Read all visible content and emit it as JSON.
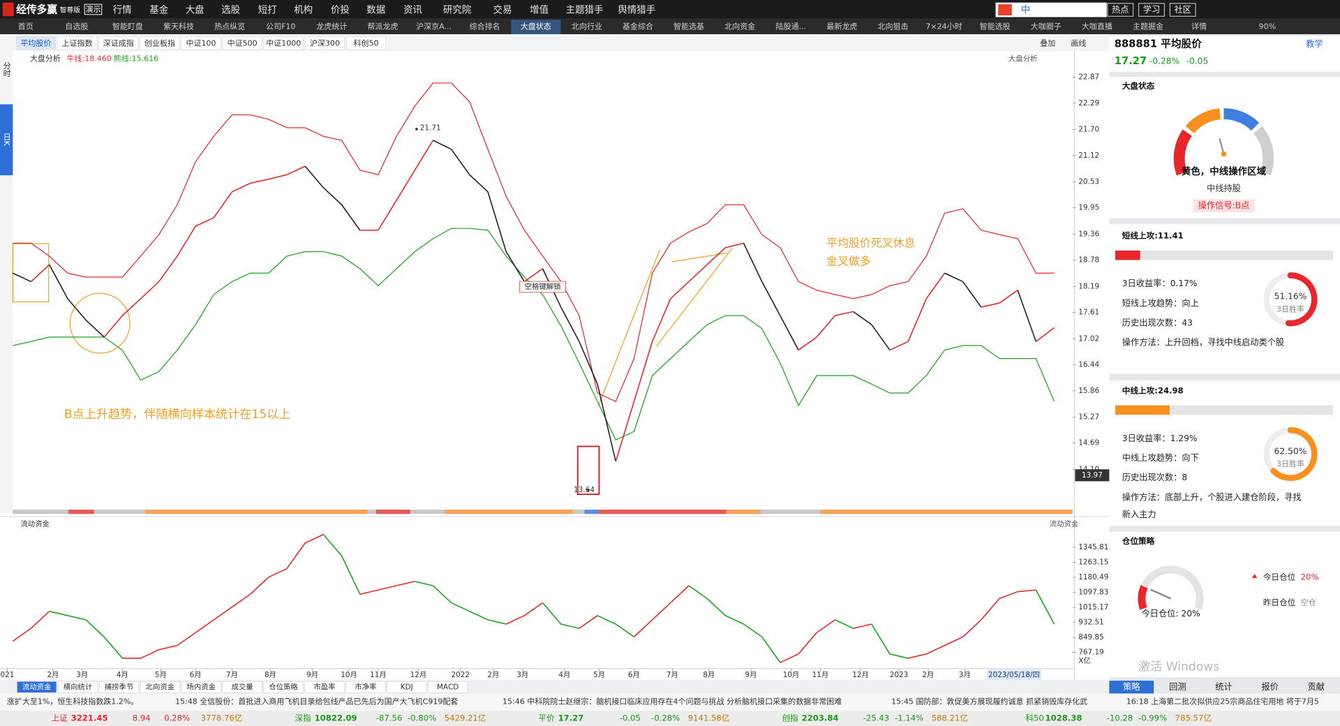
{
  "menu": {
    "brand": "经传多赢",
    "edition": "智尊版",
    "demo": "演示",
    "items": [
      "行情",
      "基金",
      "大盘",
      "选股",
      "短打",
      "机构",
      "价投",
      "数据",
      "资讯",
      "研究院",
      "交易",
      "增值",
      "主题猎手",
      "舆情猎手"
    ],
    "ime": "中",
    "right": [
      "热点",
      "学习",
      "社区"
    ],
    "zoom": "90%"
  },
  "tabs": [
    "首页",
    "自选股",
    "智能盯盘",
    "紫天科技",
    "热点纵览",
    "公司F10",
    "龙虎统计",
    "帮派龙虎",
    "沪深京A...",
    "综合排名",
    "大盘状态",
    "北向行业",
    "基金综合",
    "智能选基",
    "北向资金",
    "陆股通...",
    "最新龙虎",
    "北向狙击",
    "7×24小时",
    "智能选股",
    "大咖圈子",
    "大咖直播",
    "主题掘金",
    "详情"
  ],
  "active_tab": 10,
  "index_tabs": [
    "平均股价",
    "上证指数",
    "深证成指",
    "创业板指",
    "中证100",
    "中证500",
    "中证1000",
    "沪深300",
    "科创50"
  ],
  "active_index_tab": 0,
  "toolbar": [
    "叠加",
    "画线"
  ],
  "side_tabs": [
    "分时",
    "日K"
  ],
  "chart_data": [
    {
      "type": "line",
      "title": "大盘分析",
      "ma_labels": [
        "牛线:18.460",
        "熊线:15.616"
      ],
      "x": [
        0,
        10,
        20,
        30,
        40,
        50,
        60,
        70,
        80,
        90,
        100,
        110,
        120,
        130,
        140,
        150,
        160,
        170,
        180,
        190,
        200,
        210,
        220,
        230,
        240,
        250,
        260,
        270,
        280,
        290,
        300,
        310,
        320,
        330,
        340,
        350,
        360,
        370,
        380,
        390,
        400,
        410,
        420,
        430,
        440,
        450,
        460,
        470,
        480,
        490,
        500,
        510,
        520,
        530,
        540,
        550,
        560,
        570
      ],
      "xlim": [
        -7,
        580
      ],
      "ylim": [
        13.45,
        23.45
      ],
      "yticks": [
        22.87,
        22.29,
        {
          "value": 21.7,
          "label": "21.70"
        },
        21.12,
        20.53,
        19.95,
        19.36,
        18.78,
        18.19,
        17.61,
        17.02,
        16.44,
        15.86,
        15.27,
        14.69,
        {
          "value": 14.1,
          "label": "14.10"
        }
      ],
      "series": [
        {
          "color": "#e8262b",
          "values": [
            19.16,
            19.16,
            18.87,
            18.49,
            18.4,
            18.4,
            18.4,
            18.87,
            19.35,
            20.02,
            20.98,
            21.55,
            22.03,
            22.03,
            21.93,
            21.74,
            21.74,
            21.55,
            21.46,
            20.79,
            20.69,
            21.55,
            22.22,
            22.74,
            22.74,
            22.32,
            21.26,
            20.21,
            19.45,
            18.87,
            18.3,
            17.54,
            15.81,
            15.62,
            16.58,
            18.49,
            19.16,
            19.41,
            19.6,
            20.02,
            20.02,
            19.35,
            19.06,
            18.3,
            18.11,
            18.01,
            17.92,
            18.01,
            18.21,
            18.3,
            18.87,
            19.83,
            19.93,
            19.45,
            19.35,
            19.26,
            18.49,
            18.49
          ]
        },
        {
          "color": "#1aa31a",
          "values": [
            16.87,
            16.96,
            17.06,
            17.06,
            17.06,
            17.06,
            16.77,
            16.1,
            16.29,
            16.77,
            17.34,
            18.01,
            18.3,
            18.49,
            18.49,
            18.87,
            18.97,
            18.97,
            18.87,
            18.59,
            18.21,
            18.59,
            18.97,
            19.26,
            19.49,
            19.49,
            19.45,
            18.87,
            18.4,
            18.01,
            17.31,
            16.48,
            15.62,
            14.76,
            14.95,
            16.2,
            16.58,
            16.96,
            17.34,
            17.54,
            17.54,
            17.25,
            16.48,
            15.53,
            16.2,
            16.2,
            16.2,
            16.01,
            15.81,
            15.81,
            16.2,
            16.77,
            16.87,
            16.87,
            16.58,
            16.58,
            16.58,
            15.62
          ]
        },
        {
          "color": "#e8262b",
          "down_color": "#222222",
          "values": [
            18.49,
            18.3,
            18.68,
            17.92,
            17.44,
            17.06,
            17.54,
            17.92,
            18.3,
            18.87,
            19.54,
            19.73,
            20.31,
            20.5,
            20.59,
            20.69,
            20.88,
            20.4,
            20.02,
            19.45,
            19.45,
            20.12,
            20.79,
            21.46,
            21.26,
            20.69,
            20.31,
            18.97,
            18.3,
            18.59,
            17.73,
            16.96,
            16.01,
            14.28,
            15.62,
            16.96,
            17.92,
            18.3,
            18.68,
            19.06,
            19.16,
            18.3,
            17.54,
            16.77,
            17.06,
            17.54,
            17.63,
            17.34,
            16.77,
            16.96,
            17.92,
            18.49,
            18.3,
            17.73,
            17.82,
            18.11,
            16.96,
            17.27
          ]
        }
      ],
      "marks": [
        {
          "x": 221,
          "y": 21.71
        },
        {
          "x": 315,
          "y": 13.64
        }
      ],
      "cursor_price": 13.97,
      "notes": [
        "空格键解锁",
        "平均股价死叉休息",
        "金叉做多",
        "B点上升趋势，伴随横向样本统计在15以上"
      ]
    },
    {
      "type": "line",
      "title": "流动资金",
      "unit": "X亿",
      "x": [
        0,
        10,
        20,
        30,
        40,
        50,
        60,
        70,
        80,
        90,
        100,
        110,
        120,
        130,
        140,
        150,
        160,
        170,
        180,
        190,
        200,
        210,
        220,
        230,
        240,
        250,
        260,
        270,
        280,
        290,
        300,
        310,
        320,
        330,
        340,
        350,
        360,
        370,
        380,
        390,
        400,
        410,
        420,
        430,
        440,
        450,
        460,
        470,
        480,
        490,
        500,
        510,
        520,
        530,
        540,
        550,
        560,
        570
      ],
      "xlim": [
        -7,
        580
      ],
      "xticks": [
        {
          "value": -3,
          "label": "021"
        },
        {
          "value": 22,
          "label": "2月"
        },
        {
          "value": 38,
          "label": "3月"
        },
        {
          "value": 60,
          "label": "4月"
        },
        {
          "value": 81,
          "label": "5月"
        },
        {
          "value": 100,
          "label": "6月"
        },
        {
          "value": 120,
          "label": "7月"
        },
        {
          "value": 141,
          "label": "8月"
        },
        {
          "value": 164,
          "label": "9月"
        },
        {
          "value": 184,
          "label": "10月"
        },
        {
          "value": 200,
          "label": "11月"
        },
        {
          "value": 222,
          "label": "12月"
        },
        {
          "value": 245,
          "label": "2022"
        },
        {
          "value": 263,
          "label": "2月"
        },
        {
          "value": 279,
          "label": "3月"
        },
        {
          "value": 302,
          "label": "4月"
        },
        {
          "value": 321,
          "label": "5月"
        },
        {
          "value": 340,
          "label": "6月"
        },
        {
          "value": 361,
          "label": "7月"
        },
        {
          "value": 381,
          "label": "8月"
        },
        {
          "value": 404,
          "label": "9月"
        },
        {
          "value": 426,
          "label": "10月"
        },
        {
          "value": 442,
          "label": "11月"
        },
        {
          "value": 464,
          "label": "12月"
        },
        {
          "value": 485,
          "label": "2023"
        },
        {
          "value": 501,
          "label": "2月"
        },
        {
          "value": 521,
          "label": "3月"
        }
      ],
      "cursor": {
        "x": 548,
        "label": "2023/05/18/四"
      },
      "ylim": [
        687,
        1440
      ],
      "yticks": [
        1345.81,
        1263.15,
        1180.49,
        1097.83,
        1015.17,
        932.51,
        849.85,
        767.19
      ],
      "series": [
        {
          "color": "#e8262b",
          "down_color": "#1aa31a",
          "values": [
            829.1,
            899.6,
            993.5,
            970.0,
            946.6,
            852.6,
            735.2,
            735.2,
            782.2,
            805.6,
            876.1,
            946.6,
            1017.0,
            1087.5,
            1181.4,
            1228.4,
            1369.3,
            1416.3,
            1298.8,
            1087.5,
            1111.0,
            1134.5,
            1157.9,
            1134.5,
            1040.5,
            993.5,
            946.6,
            923.1,
            970.0,
            1040.5,
            923.1,
            899.6,
            970.0,
            923.1,
            852.6,
            946.6,
            1040.5,
            1134.5,
            1064.0,
            970.0,
            923.1,
            852.6,
            711.7,
            758.7,
            876.1,
            946.6,
            899.6,
            923.1,
            758.7,
            735.2,
            758.7,
            805.6,
            852.6,
            946.6,
            1064.0,
            1101.6,
            1111.0,
            923.1
          ]
        }
      ]
    }
  ],
  "bottom_tabs": [
    "流动资金",
    "横向统计",
    "捕捞季节",
    "北向资金",
    "场内资金",
    "成交量",
    "仓位策略",
    "市盈率",
    "市净率",
    "KDJ",
    "MACD"
  ],
  "active_bottom_tab": 0,
  "news": [
    "涨扩大至1%，恒生科技指数跌1.2%。",
    "15:48 全信股份：首批进入商用飞机目录给包线产品已先后为国产大飞机C919配套",
    "15:46 中科院院士赵继宗：脑机接口临床应用存在4个问题与挑战 分析脑机接口采集的数据非常困难",
    "15:45 国防部：敦促美方展现履约诚意 抓紧销毁库存化武",
    "16:18 上海第二批次拟供应25宗商品住宅用地 将于7月5"
  ],
  "indices": [
    {
      "name": "上证",
      "price": 3221.45,
      "change": 8.94,
      "pct": "0.28%",
      "amount": "3778.76亿"
    },
    {
      "name": "深指",
      "price": 10822.09,
      "change": -87.56,
      "pct": "-0.80%",
      "amount": "5429.21亿"
    },
    {
      "name": "平价",
      "price": 17.27,
      "change": -0.05,
      "pct": "-0.28%",
      "amount": "9141.58亿"
    },
    {
      "name": "创指",
      "price": 2203.84,
      "change": -25.43,
      "pct": "-1.14%",
      "amount": "588.21亿"
    },
    {
      "name": "科50",
      "price": 1028.38,
      "change": -10.28,
      "pct": "-0.99%",
      "amount": "785.57亿"
    }
  ],
  "panel": {
    "code": "888881 平均股价",
    "teach": "教学",
    "price": 17.27,
    "pct": "-0.28%",
    "change": -0.05,
    "state": {
      "title": "大盘状态",
      "status": "黄色，中线操作区域",
      "hold": "中线持股",
      "signal": "操作信号:B点"
    },
    "short": {
      "title": {
        "value": 11.41,
        "label": "短线上攻:11.41"
      },
      "color": "#e8262b",
      "lines": [
        "3日收益率：0.17%",
        "短线上攻趋势：向上",
        "历史出现次数：43",
        "操作方法：上升回档，寻找中线启动类个股"
      ],
      "win": {
        "value": 51.16,
        "label": "51.16%"
      },
      "win_label": "3日胜率"
    },
    "mid": {
      "title": {
        "value": 24.98,
        "label": "中线上攻:24.98"
      },
      "color": "#f7901e",
      "lines": [
        "3日收益率：1.29%",
        "中线上攻趋势：向下",
        "历史出现次数：8",
        "操作方法：底部上升，个股进入建仓阶段，寻找",
        "新入主力"
      ],
      "win": {
        "value": 62.5,
        "label": "62.50%"
      },
      "win_label": "3日胜率"
    },
    "position": {
      "title": "仓位策略",
      "today": "今日仓位",
      "today_pct": "20%",
      "yesterday": "昨日仓位",
      "yesterday_pct": "空仓",
      "gauge": {
        "value": 20,
        "label": "今日仓位: 20%"
      }
    },
    "tabs": [
      "策略",
      "回测",
      "统计",
      "报价",
      "贡献"
    ],
    "active_tab": 0
  },
  "watermark": "激活 Windows"
}
